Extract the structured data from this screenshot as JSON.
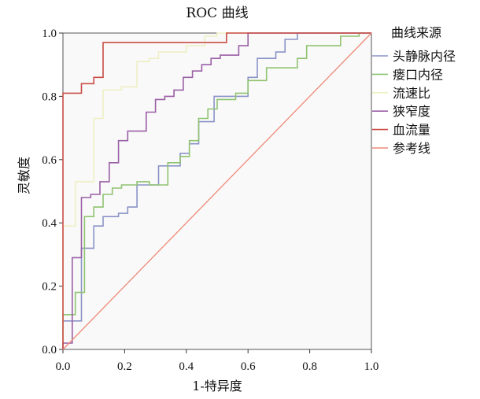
{
  "chart_data": {
    "type": "line",
    "title": "ROC 曲线",
    "xlabel": "1-特异度",
    "ylabel": "灵敏度",
    "xlim": [
      0,
      1
    ],
    "ylim": [
      0,
      1
    ],
    "x_ticks": [
      "0.0",
      "0.2",
      "0.4",
      "0.6",
      "0.8",
      "1.0"
    ],
    "y_ticks": [
      "0.0",
      "0.2",
      "0.4",
      "0.6",
      "0.8",
      "1.0"
    ],
    "legend_title": "曲线来源",
    "legend_position": "right",
    "grid": false,
    "series": [
      {
        "name": "头静脉内径",
        "color": "#8a93c8",
        "points": [
          [
            0,
            0
          ],
          [
            0,
            0.09
          ],
          [
            0.06,
            0.09
          ],
          [
            0.06,
            0.32
          ],
          [
            0.1,
            0.32
          ],
          [
            0.1,
            0.39
          ],
          [
            0.13,
            0.39
          ],
          [
            0.13,
            0.42
          ],
          [
            0.18,
            0.42
          ],
          [
            0.18,
            0.43
          ],
          [
            0.21,
            0.43
          ],
          [
            0.21,
            0.45
          ],
          [
            0.24,
            0.45
          ],
          [
            0.24,
            0.52
          ],
          [
            0.31,
            0.52
          ],
          [
            0.31,
            0.58
          ],
          [
            0.38,
            0.58
          ],
          [
            0.38,
            0.62
          ],
          [
            0.41,
            0.62
          ],
          [
            0.41,
            0.65
          ],
          [
            0.44,
            0.65
          ],
          [
            0.44,
            0.72
          ],
          [
            0.49,
            0.72
          ],
          [
            0.49,
            0.8
          ],
          [
            0.6,
            0.8
          ],
          [
            0.6,
            0.86
          ],
          [
            0.63,
            0.86
          ],
          [
            0.63,
            0.92
          ],
          [
            0.69,
            0.92
          ],
          [
            0.69,
            0.94
          ],
          [
            0.72,
            0.94
          ],
          [
            0.72,
            0.98
          ],
          [
            0.76,
            0.98
          ],
          [
            0.76,
            1.0
          ],
          [
            1,
            1
          ]
        ]
      },
      {
        "name": "瘘口内径",
        "color": "#8fc370",
        "points": [
          [
            0,
            0
          ],
          [
            0,
            0.11
          ],
          [
            0.04,
            0.11
          ],
          [
            0.04,
            0.18
          ],
          [
            0.07,
            0.18
          ],
          [
            0.07,
            0.42
          ],
          [
            0.1,
            0.42
          ],
          [
            0.1,
            0.45
          ],
          [
            0.13,
            0.45
          ],
          [
            0.13,
            0.49
          ],
          [
            0.16,
            0.49
          ],
          [
            0.16,
            0.51
          ],
          [
            0.19,
            0.51
          ],
          [
            0.19,
            0.52
          ],
          [
            0.24,
            0.52
          ],
          [
            0.24,
            0.53
          ],
          [
            0.28,
            0.53
          ],
          [
            0.28,
            0.52
          ],
          [
            0.34,
            0.52
          ],
          [
            0.34,
            0.59
          ],
          [
            0.38,
            0.59
          ],
          [
            0.38,
            0.61
          ],
          [
            0.41,
            0.61
          ],
          [
            0.41,
            0.66
          ],
          [
            0.44,
            0.66
          ],
          [
            0.44,
            0.73
          ],
          [
            0.47,
            0.73
          ],
          [
            0.47,
            0.76
          ],
          [
            0.5,
            0.76
          ],
          [
            0.5,
            0.79
          ],
          [
            0.56,
            0.79
          ],
          [
            0.56,
            0.81
          ],
          [
            0.6,
            0.81
          ],
          [
            0.6,
            0.85
          ],
          [
            0.66,
            0.85
          ],
          [
            0.66,
            0.89
          ],
          [
            0.76,
            0.89
          ],
          [
            0.76,
            0.92
          ],
          [
            0.79,
            0.92
          ],
          [
            0.79,
            0.96
          ],
          [
            0.9,
            0.96
          ],
          [
            0.9,
            0.99
          ],
          [
            0.96,
            0.99
          ],
          [
            0.96,
            1.0
          ],
          [
            1,
            1
          ]
        ]
      },
      {
        "name": "流速比",
        "color": "#eef0c4",
        "points": [
          [
            0,
            0
          ],
          [
            0,
            0.39
          ],
          [
            0.04,
            0.39
          ],
          [
            0.04,
            0.53
          ],
          [
            0.1,
            0.53
          ],
          [
            0.1,
            0.73
          ],
          [
            0.13,
            0.73
          ],
          [
            0.13,
            0.82
          ],
          [
            0.19,
            0.82
          ],
          [
            0.19,
            0.83
          ],
          [
            0.24,
            0.83
          ],
          [
            0.24,
            0.91
          ],
          [
            0.28,
            0.91
          ],
          [
            0.28,
            0.92
          ],
          [
            0.31,
            0.92
          ],
          [
            0.31,
            0.94
          ],
          [
            0.4,
            0.94
          ],
          [
            0.4,
            0.96
          ],
          [
            0.46,
            0.96
          ],
          [
            0.46,
            0.99
          ],
          [
            0.5,
            0.99
          ],
          [
            0.5,
            1.0
          ],
          [
            1,
            1
          ]
        ]
      },
      {
        "name": "狭窄度",
        "color": "#9a5fa6",
        "points": [
          [
            0,
            0
          ],
          [
            0,
            0.02
          ],
          [
            0.03,
            0.02
          ],
          [
            0.03,
            0.29
          ],
          [
            0.06,
            0.29
          ],
          [
            0.06,
            0.48
          ],
          [
            0.09,
            0.48
          ],
          [
            0.09,
            0.49
          ],
          [
            0.12,
            0.49
          ],
          [
            0.12,
            0.53
          ],
          [
            0.15,
            0.53
          ],
          [
            0.15,
            0.59
          ],
          [
            0.18,
            0.59
          ],
          [
            0.18,
            0.66
          ],
          [
            0.21,
            0.66
          ],
          [
            0.21,
            0.69
          ],
          [
            0.27,
            0.69
          ],
          [
            0.27,
            0.75
          ],
          [
            0.3,
            0.75
          ],
          [
            0.3,
            0.79
          ],
          [
            0.33,
            0.79
          ],
          [
            0.33,
            0.8
          ],
          [
            0.36,
            0.8
          ],
          [
            0.36,
            0.82
          ],
          [
            0.39,
            0.82
          ],
          [
            0.39,
            0.86
          ],
          [
            0.42,
            0.86
          ],
          [
            0.42,
            0.88
          ],
          [
            0.45,
            0.88
          ],
          [
            0.45,
            0.9
          ],
          [
            0.48,
            0.9
          ],
          [
            0.48,
            0.92
          ],
          [
            0.51,
            0.92
          ],
          [
            0.51,
            0.93
          ],
          [
            0.57,
            0.93
          ],
          [
            0.57,
            0.96
          ],
          [
            0.6,
            0.96
          ],
          [
            0.6,
            1.0
          ],
          [
            1,
            1
          ]
        ]
      },
      {
        "name": "血流量",
        "color": "#c94c45",
        "points": [
          [
            0,
            0
          ],
          [
            0,
            0.81
          ],
          [
            0.06,
            0.81
          ],
          [
            0.06,
            0.84
          ],
          [
            0.1,
            0.84
          ],
          [
            0.1,
            0.86
          ],
          [
            0.13,
            0.86
          ],
          [
            0.13,
            0.97
          ],
          [
            0.53,
            0.97
          ],
          [
            0.53,
            1.0
          ],
          [
            1,
            1
          ]
        ]
      },
      {
        "name": "参考线",
        "color": "#ee8a78",
        "points": [
          [
            0,
            0
          ],
          [
            1,
            1
          ]
        ]
      }
    ]
  }
}
